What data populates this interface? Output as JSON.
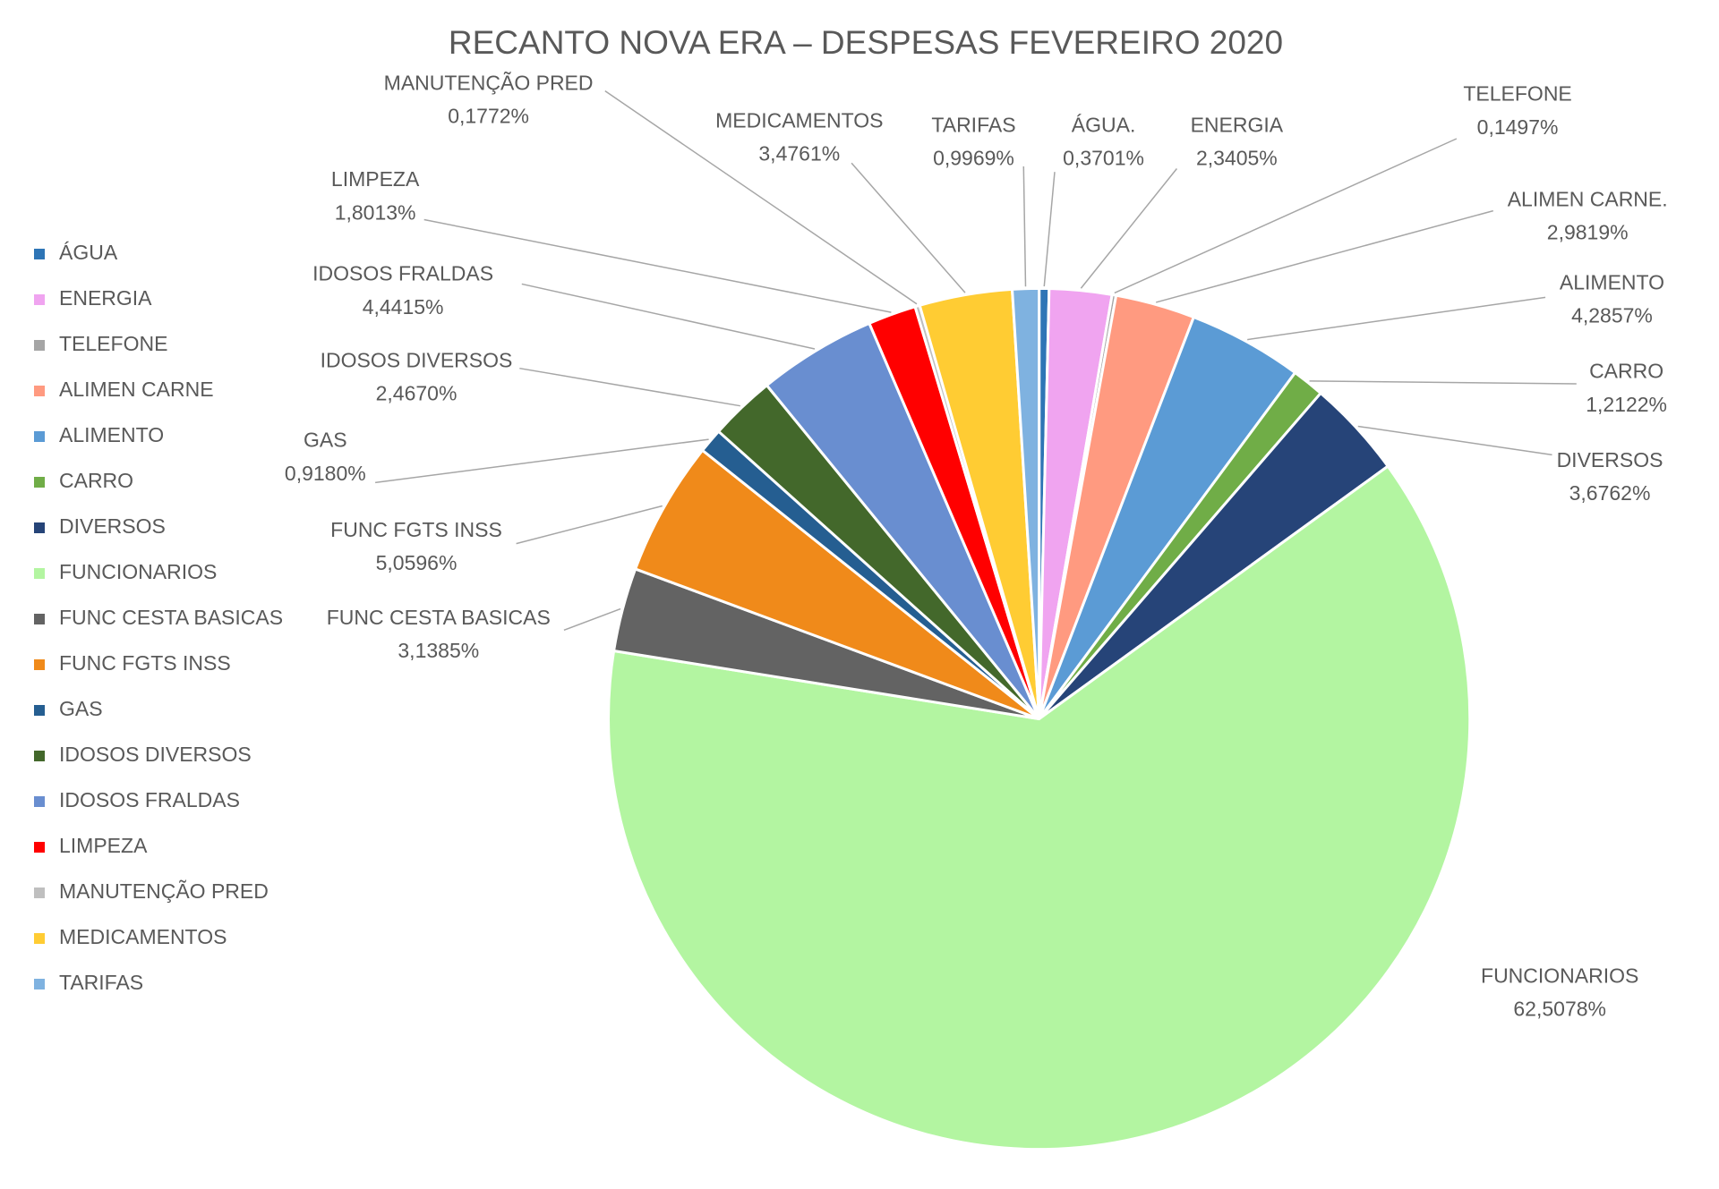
{
  "chart_data": {
    "type": "pie",
    "title": "RECANTO NOVA ERA – DESPESAS FEVEREIRO 2020",
    "categories": [
      "ÁGUA",
      "ENERGIA",
      "TELEFONE",
      "ALIMEN CARNE",
      "ALIMENTO",
      "CARRO",
      "DIVERSOS",
      "FUNCIONARIOS",
      "FUNC CESTA BASICAS",
      "FUNC FGTS INSS",
      "GAS",
      "IDOSOS DIVERSOS",
      "IDOSOS FRALDAS",
      "LIMPEZA",
      "MANUTENÇÃO PRED",
      "MEDICAMENTOS",
      "TARIFAS"
    ],
    "slice_labels": [
      "ÁGUA.",
      "ENERGIA",
      "TELEFONE",
      "ALIMEN CARNE.",
      "ALIMENTO",
      "CARRO",
      "DIVERSOS",
      "FUNCIONARIOS",
      "FUNC CESTA BASICAS",
      "FUNC FGTS INSS",
      "GAS",
      "IDOSOS DIVERSOS",
      "IDOSOS FRALDAS",
      "LIMPEZA",
      "MANUTENÇÃO PRED",
      "MEDICAMENTOS",
      "TARIFAS"
    ],
    "values": [
      0.3701,
      2.3405,
      0.1497,
      2.9819,
      4.2857,
      1.2122,
      3.6762,
      62.5078,
      3.1385,
      5.0596,
      0.918,
      2.467,
      4.4415,
      1.8013,
      0.1772,
      3.4761,
      0.9969
    ],
    "value_labels": [
      "0,3701%",
      "2,3405%",
      "0,1497%",
      "2,9819%",
      "4,2857%",
      "1,2122%",
      "3,6762%",
      "62,5078%",
      "3,1385%",
      "5,0596%",
      "0,9180%",
      "2,4670%",
      "4,4415%",
      "1,8013%",
      "0,1772%",
      "3,4761%",
      "0,9969%"
    ],
    "colors": [
      "#2e75b6",
      "#f0a4f0",
      "#a5a5a5",
      "#ff9a80",
      "#5b9bd5",
      "#70ad47",
      "#264478",
      "#b3f5a1",
      "#636363",
      "#f08a1a",
      "#255e91",
      "#43682b",
      "#698ed0",
      "#ff0000",
      "#bfbfbf",
      "#ffcc33",
      "#7fb2e0"
    ],
    "legend": "left"
  }
}
